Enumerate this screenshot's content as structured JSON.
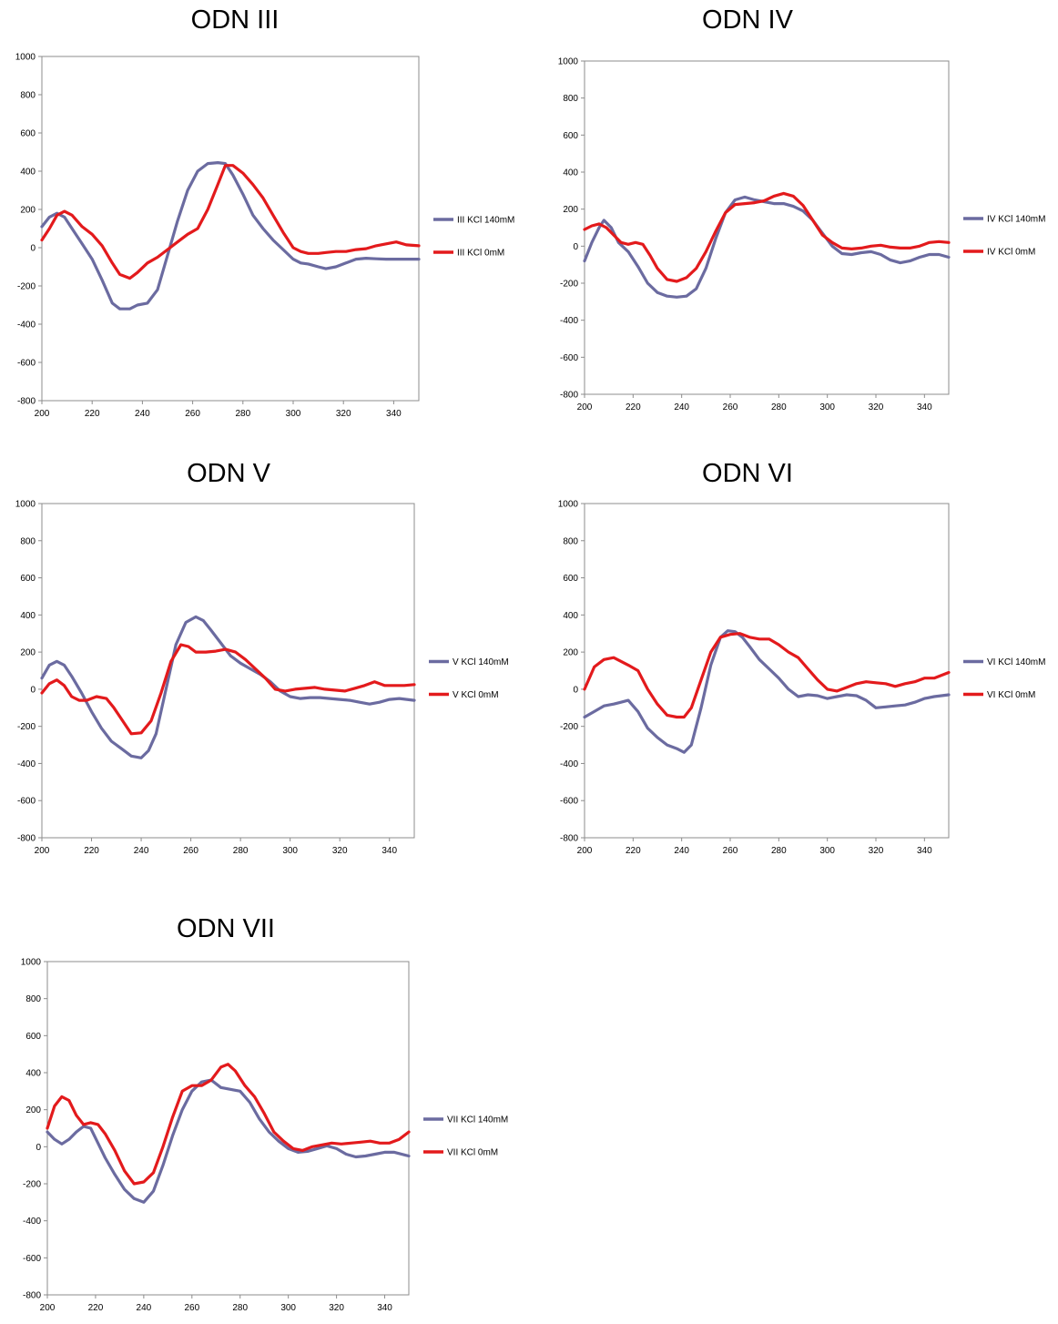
{
  "colors": {
    "kcl140": "#6b6ba0",
    "kcl0": "#e31a1c",
    "frame": "#8c8c8c"
  },
  "charts": [
    {
      "type": "line",
      "title": "ODN III",
      "xlim": [
        200,
        350
      ],
      "ylim": [
        -800,
        1000
      ],
      "xticks": [
        200,
        220,
        240,
        260,
        280,
        300,
        320,
        340
      ],
      "yticks": [
        1000,
        800,
        600,
        400,
        200,
        0,
        -200,
        -400,
        -600,
        -800
      ],
      "grid": false,
      "legend_position": "right",
      "series": [
        {
          "name": "III KCl 140mM",
          "color": "#6b6ba0",
          "x": [
            200,
            203,
            206,
            209,
            212,
            216,
            220,
            224,
            228,
            231,
            235,
            238,
            242,
            246,
            250,
            254,
            258,
            262,
            266,
            270,
            273,
            276,
            280,
            284,
            288,
            292,
            296,
            300,
            303,
            306,
            310,
            313,
            317,
            321,
            325,
            329,
            333,
            337,
            341,
            345,
            350
          ],
          "y": [
            110,
            160,
            180,
            160,
            100,
            20,
            -60,
            -170,
            -290,
            -320,
            -320,
            -300,
            -290,
            -220,
            -40,
            140,
            300,
            400,
            440,
            445,
            440,
            380,
            280,
            170,
            100,
            40,
            -10,
            -60,
            -80,
            -85,
            -100,
            -110,
            -100,
            -80,
            -60,
            -55,
            -58,
            -60,
            -60,
            -60,
            -60
          ]
        },
        {
          "name": "III KCl 0mM",
          "color": "#e31a1c",
          "x": [
            200,
            203,
            206,
            209,
            212,
            216,
            220,
            224,
            228,
            231,
            235,
            238,
            242,
            246,
            250,
            254,
            258,
            262,
            266,
            270,
            273,
            276,
            280,
            284,
            288,
            292,
            296,
            300,
            303,
            306,
            310,
            313,
            317,
            321,
            325,
            329,
            333,
            337,
            341,
            345,
            350
          ],
          "y": [
            40,
            100,
            170,
            190,
            170,
            110,
            70,
            10,
            -80,
            -140,
            -160,
            -130,
            -80,
            -50,
            -10,
            30,
            70,
            100,
            200,
            330,
            430,
            430,
            390,
            330,
            260,
            170,
            80,
            0,
            -20,
            -30,
            -30,
            -25,
            -20,
            -20,
            -10,
            -5,
            10,
            20,
            30,
            15,
            10
          ]
        }
      ]
    },
    {
      "type": "line",
      "title": "ODN IV",
      "xlim": [
        200,
        350
      ],
      "ylim": [
        -800,
        1000
      ],
      "xticks": [
        200,
        220,
        240,
        260,
        280,
        300,
        320,
        340
      ],
      "yticks": [
        1000,
        800,
        600,
        400,
        200,
        0,
        -200,
        -400,
        -600,
        -800
      ],
      "grid": false,
      "legend_position": "right",
      "series": [
        {
          "name": "IV KCl 140mM",
          "color": "#6b6ba0",
          "x": [
            200,
            203,
            206,
            208,
            211,
            214,
            218,
            222,
            226,
            230,
            234,
            238,
            242,
            246,
            250,
            254,
            258,
            262,
            266,
            270,
            274,
            278,
            282,
            286,
            290,
            294,
            298,
            302,
            306,
            310,
            314,
            318,
            322,
            326,
            330,
            334,
            338,
            342,
            346,
            350
          ],
          "y": [
            -80,
            20,
            100,
            140,
            100,
            20,
            -30,
            -110,
            -200,
            -250,
            -270,
            -275,
            -270,
            -230,
            -120,
            40,
            180,
            250,
            265,
            250,
            240,
            230,
            230,
            215,
            190,
            140,
            70,
            0,
            -40,
            -45,
            -35,
            -30,
            -45,
            -75,
            -90,
            -80,
            -60,
            -45,
            -45,
            -60
          ]
        },
        {
          "name": "IV KCl 0mM",
          "color": "#e31a1c",
          "x": [
            200,
            203,
            206,
            209,
            212,
            215,
            218,
            221,
            224,
            227,
            230,
            234,
            238,
            242,
            246,
            250,
            254,
            258,
            262,
            266,
            270,
            274,
            278,
            282,
            286,
            290,
            294,
            298,
            302,
            306,
            310,
            314,
            318,
            322,
            326,
            330,
            334,
            338,
            342,
            346,
            350
          ],
          "y": [
            90,
            110,
            120,
            100,
            60,
            20,
            10,
            20,
            10,
            -50,
            -120,
            -180,
            -190,
            -170,
            -120,
            -30,
            80,
            180,
            225,
            230,
            235,
            245,
            270,
            285,
            270,
            220,
            140,
            60,
            20,
            -10,
            -15,
            -10,
            0,
            5,
            -5,
            -10,
            -10,
            0,
            20,
            25,
            20
          ]
        }
      ]
    },
    {
      "type": "line",
      "title": "ODN V",
      "xlim": [
        200,
        350
      ],
      "ylim": [
        -800,
        1000
      ],
      "xticks": [
        200,
        220,
        240,
        260,
        280,
        300,
        320,
        340
      ],
      "yticks": [
        1000,
        800,
        600,
        400,
        200,
        0,
        -200,
        -400,
        -600,
        -800
      ],
      "grid": false,
      "legend_position": "right",
      "series": [
        {
          "name": "V KCl 140mM",
          "color": "#6b6ba0",
          "x": [
            200,
            203,
            206,
            209,
            212,
            216,
            220,
            224,
            228,
            232,
            236,
            240,
            243,
            246,
            250,
            254,
            258,
            262,
            265,
            268,
            272,
            276,
            280,
            284,
            288,
            292,
            296,
            300,
            304,
            308,
            312,
            316,
            320,
            324,
            328,
            332,
            336,
            340,
            344,
            350
          ],
          "y": [
            60,
            130,
            150,
            130,
            70,
            -20,
            -120,
            -210,
            -280,
            -320,
            -360,
            -370,
            -330,
            -240,
            0,
            240,
            360,
            390,
            370,
            320,
            250,
            180,
            140,
            110,
            80,
            40,
            -10,
            -40,
            -50,
            -45,
            -45,
            -50,
            -55,
            -60,
            -70,
            -80,
            -70,
            -55,
            -50,
            -60
          ]
        },
        {
          "name": "V KCl 0mM",
          "color": "#e31a1c",
          "x": [
            200,
            203,
            206,
            209,
            212,
            215,
            218,
            222,
            226,
            229,
            232,
            236,
            240,
            244,
            248,
            252,
            256,
            259,
            262,
            266,
            270,
            274,
            278,
            282,
            286,
            290,
            294,
            298,
            302,
            306,
            310,
            314,
            318,
            322,
            326,
            330,
            334,
            338,
            342,
            346,
            350
          ],
          "y": [
            -20,
            30,
            50,
            20,
            -40,
            -60,
            -60,
            -40,
            -50,
            -100,
            -160,
            -240,
            -235,
            -170,
            -20,
            150,
            240,
            230,
            200,
            200,
            205,
            215,
            200,
            160,
            110,
            60,
            0,
            -10,
            0,
            5,
            10,
            0,
            -5,
            -10,
            5,
            20,
            40,
            20,
            20,
            20,
            25
          ]
        }
      ]
    },
    {
      "type": "line",
      "title": "ODN VI",
      "xlim": [
        200,
        350
      ],
      "ylim": [
        -800,
        1000
      ],
      "xticks": [
        200,
        220,
        240,
        260,
        280,
        300,
        320,
        340
      ],
      "yticks": [
        1000,
        800,
        600,
        400,
        200,
        0,
        -200,
        -400,
        -600,
        -800
      ],
      "grid": false,
      "legend_position": "right",
      "series": [
        {
          "name": "VI KCl 140mM",
          "color": "#6b6ba0",
          "x": [
            200,
            204,
            208,
            212,
            215,
            218,
            222,
            226,
            230,
            234,
            238,
            241,
            244,
            248,
            252,
            256,
            259,
            262,
            265,
            268,
            272,
            276,
            280,
            284,
            288,
            292,
            296,
            300,
            304,
            308,
            312,
            316,
            320,
            324,
            328,
            332,
            336,
            340,
            344,
            350
          ],
          "y": [
            -150,
            -120,
            -90,
            -80,
            -70,
            -60,
            -120,
            -210,
            -260,
            -300,
            -320,
            -340,
            -300,
            -100,
            130,
            280,
            315,
            310,
            280,
            230,
            160,
            110,
            60,
            0,
            -40,
            -30,
            -35,
            -50,
            -40,
            -30,
            -35,
            -60,
            -100,
            -95,
            -90,
            -85,
            -70,
            -50,
            -40,
            -30
          ]
        },
        {
          "name": "VI KCl 0mM",
          "color": "#e31a1c",
          "x": [
            200,
            204,
            208,
            212,
            215,
            218,
            222,
            226,
            230,
            234,
            238,
            241,
            244,
            248,
            252,
            256,
            260,
            264,
            268,
            272,
            276,
            280,
            284,
            288,
            292,
            296,
            300,
            304,
            308,
            312,
            316,
            320,
            324,
            328,
            332,
            336,
            340,
            344,
            350
          ],
          "y": [
            0,
            120,
            160,
            170,
            150,
            130,
            100,
            0,
            -80,
            -140,
            -150,
            -150,
            -100,
            50,
            200,
            280,
            295,
            300,
            280,
            270,
            270,
            240,
            200,
            170,
            110,
            50,
            0,
            -10,
            10,
            30,
            40,
            35,
            30,
            15,
            30,
            40,
            60,
            60,
            90
          ]
        }
      ]
    },
    {
      "type": "line",
      "title": "ODN VII",
      "xlim": [
        200,
        350
      ],
      "ylim": [
        -800,
        1000
      ],
      "xticks": [
        200,
        220,
        240,
        260,
        280,
        300,
        320,
        340
      ],
      "yticks": [
        1000,
        800,
        600,
        400,
        200,
        0,
        -200,
        -400,
        -600,
        -800
      ],
      "grid": false,
      "legend_position": "right",
      "series": [
        {
          "name": "VII KCl 140mM",
          "color": "#6b6ba0",
          "x": [
            200,
            203,
            206,
            209,
            212,
            215,
            218,
            221,
            224,
            228,
            232,
            236,
            240,
            244,
            248,
            252,
            256,
            260,
            264,
            268,
            272,
            276,
            280,
            284,
            288,
            292,
            296,
            300,
            304,
            308,
            312,
            316,
            320,
            324,
            328,
            332,
            336,
            340,
            344,
            350
          ],
          "y": [
            80,
            40,
            15,
            40,
            80,
            110,
            100,
            20,
            -60,
            -150,
            -230,
            -280,
            -300,
            -240,
            -100,
            60,
            200,
            300,
            350,
            360,
            320,
            310,
            300,
            240,
            150,
            80,
            30,
            -10,
            -30,
            -25,
            -10,
            5,
            -10,
            -40,
            -55,
            -50,
            -40,
            -30,
            -30,
            -50
          ]
        },
        {
          "name": "VII KCl 0mM",
          "color": "#e31a1c",
          "x": [
            200,
            203,
            206,
            209,
            212,
            215,
            218,
            221,
            224,
            228,
            232,
            236,
            240,
            244,
            248,
            252,
            256,
            260,
            264,
            268,
            272,
            275,
            278,
            282,
            286,
            290,
            294,
            298,
            302,
            306,
            310,
            314,
            318,
            322,
            326,
            330,
            334,
            338,
            342,
            346,
            350
          ],
          "y": [
            100,
            220,
            270,
            250,
            170,
            120,
            130,
            120,
            70,
            -20,
            -130,
            -200,
            -190,
            -140,
            0,
            160,
            300,
            330,
            330,
            360,
            430,
            445,
            410,
            330,
            270,
            180,
            80,
            30,
            -10,
            -20,
            0,
            10,
            20,
            15,
            20,
            25,
            30,
            20,
            20,
            40,
            80
          ]
        }
      ]
    }
  ]
}
